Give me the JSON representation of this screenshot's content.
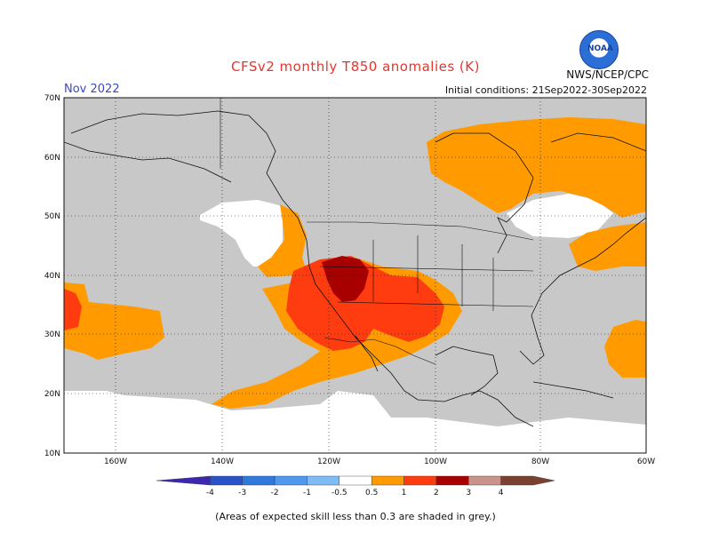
{
  "header": {
    "title": "CFSv2 monthly T850 anomalies (K)",
    "month": "Nov 2022",
    "initial_conditions": "Initial conditions: 21Sep2022-30Sep2022",
    "agency": "NWS/NCEP/CPC",
    "logo_text": "NOAA"
  },
  "map": {
    "lat_labels": [
      "70N",
      "60N",
      "50N",
      "40N",
      "30N",
      "20N",
      "10N"
    ],
    "lon_labels": [
      "160W",
      "140W",
      "120W",
      "100W",
      "80W",
      "60W"
    ]
  },
  "colorbar": {
    "labels": [
      "-4",
      "-3",
      "-2",
      "-1",
      "-0.5",
      "0.5",
      "1",
      "2",
      "3",
      "4"
    ],
    "colors": [
      "#3c28b0",
      "#2a52c8",
      "#2f78dc",
      "#4f9af0",
      "#7fbcf6",
      "#ffffff",
      "#ff9a00",
      "#ff3c10",
      "#a80000",
      "#c9928a",
      "#7a4030"
    ]
  },
  "footnote": "(Areas of expected skill less than 0.3 are shaded in grey.)"
}
